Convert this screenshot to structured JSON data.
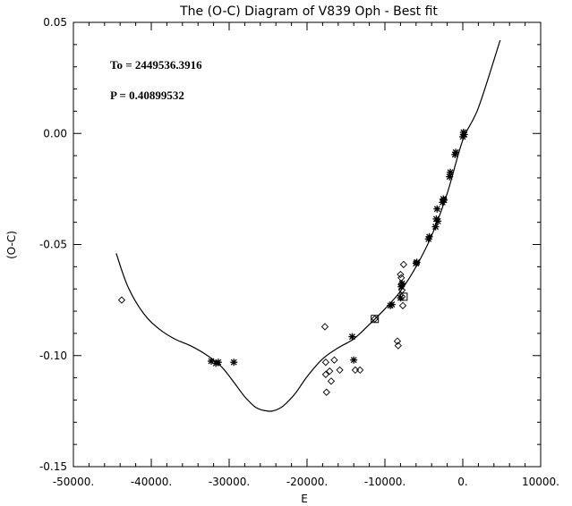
{
  "chart_data": {
    "type": "scatter",
    "title": "The (O-C) Diagram of V839 Oph - Best fit",
    "xlabel": "E",
    "ylabel": "(O-C)",
    "xlim": [
      -50000,
      10000
    ],
    "ylim": [
      -0.15,
      0.05
    ],
    "x_ticks": [
      -50000,
      -40000,
      -30000,
      -20000,
      -10000,
      0,
      10000
    ],
    "x_tick_labels": [
      "-50000.",
      "-40000.",
      "-30000.",
      "-20000.",
      "-10000.",
      "0.",
      "10000."
    ],
    "y_ticks": [
      -0.15,
      -0.1,
      -0.05,
      0.0,
      0.05
    ],
    "y_tick_labels": [
      "-0.15",
      "-0.10",
      "-0.05",
      "0.00",
      "0.05"
    ],
    "grid": false,
    "annotations": [
      "To = 2449536.3916",
      "P = 0.40899532"
    ],
    "series": [
      {
        "marker": "asterisk",
        "x": [
          -32300,
          -31700,
          -31400,
          -29400,
          -14200,
          -14000,
          -9300,
          -9100,
          -8000,
          -7900,
          -7800,
          -6000,
          -5900,
          -4400,
          -4300,
          -3500,
          -3400,
          -3300,
          -3200,
          -2600,
          -2500,
          -2400,
          -1700,
          -1600,
          -1000,
          -900,
          0,
          100,
          200
        ],
        "y": [
          -0.1025,
          -0.1035,
          -0.103,
          -0.103,
          -0.0915,
          -0.102,
          -0.0775,
          -0.077,
          -0.074,
          -0.069,
          -0.0675,
          -0.0585,
          -0.058,
          -0.0475,
          -0.0465,
          -0.042,
          -0.0385,
          -0.034,
          -0.0395,
          -0.031,
          -0.0295,
          -0.03,
          -0.0195,
          -0.0175,
          -0.0095,
          -0.0085,
          -0.0015,
          0.0005,
          -0.0005
        ]
      },
      {
        "marker": "diamond",
        "x": [
          -43800,
          -17700,
          -17600,
          -17600,
          -17500,
          -17100,
          -16900,
          -16500,
          -15800,
          -13800,
          -13200,
          -11300,
          -8400,
          -8300,
          -8000,
          -7900,
          -7900,
          -7800,
          -7800,
          -7700,
          -7600
        ],
        "y": [
          -0.075,
          -0.087,
          -0.103,
          -0.1085,
          -0.1165,
          -0.107,
          -0.1115,
          -0.102,
          -0.1065,
          -0.1065,
          -0.1065,
          -0.0835,
          -0.0935,
          -0.0955,
          -0.0635,
          -0.065,
          -0.068,
          -0.0705,
          -0.0735,
          -0.0775,
          -0.059
        ]
      },
      {
        "marker": "square",
        "x": [
          -11300,
          -7600
        ],
        "y": [
          -0.0835,
          -0.0735
        ]
      }
    ],
    "fit_curve": {
      "x": [
        -44500,
        -43000,
        -41000,
        -39000,
        -37000,
        -35000,
        -33000,
        -31000,
        -29500,
        -28000,
        -26500,
        -25000,
        -24000,
        -23000,
        -21500,
        -20000,
        -18000,
        -16000,
        -14000,
        -12000,
        -10000,
        -8000,
        -6000,
        -4000,
        -2000,
        0,
        2000,
        4800
      ],
      "y": [
        -0.054,
        -0.069,
        -0.081,
        -0.088,
        -0.0925,
        -0.0955,
        -0.0995,
        -0.105,
        -0.1115,
        -0.1185,
        -0.1235,
        -0.125,
        -0.1245,
        -0.1225,
        -0.117,
        -0.1095,
        -0.1015,
        -0.0965,
        -0.0925,
        -0.086,
        -0.079,
        -0.071,
        -0.06,
        -0.046,
        -0.027,
        -0.003,
        0.0115,
        0.042
      ]
    }
  }
}
